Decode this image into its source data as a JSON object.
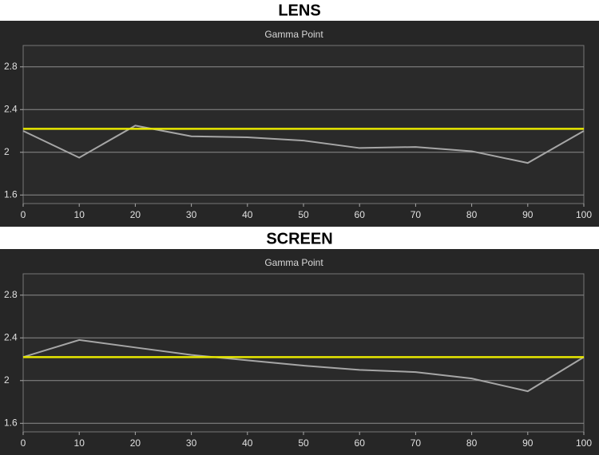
{
  "chart_data": [
    {
      "type": "line",
      "title": "LENS",
      "subtitle": "Gamma Point",
      "x": [
        0,
        10,
        20,
        30,
        40,
        50,
        60,
        70,
        80,
        90,
        100
      ],
      "series": [
        {
          "color": "#a6a6a6",
          "values": [
            2.2,
            1.95,
            2.25,
            2.15,
            2.14,
            2.11,
            2.04,
            2.05,
            2.01,
            1.9,
            2.2
          ]
        },
        {
          "color": "#e8e800",
          "values": [
            2.22,
            2.22,
            2.22,
            2.22,
            2.22,
            2.22,
            2.22,
            2.22,
            2.22,
            2.22,
            2.22
          ]
        }
      ],
      "xlim": [
        0,
        100
      ],
      "xticks": [
        0,
        10,
        20,
        30,
        40,
        50,
        60,
        70,
        80,
        90,
        100
      ],
      "ylim": [
        1.52,
        3.0
      ],
      "yticks": [
        1.6,
        2,
        2.4,
        2.8
      ],
      "grid": true
    },
    {
      "type": "line",
      "title": "SCREEN",
      "subtitle": "Gamma Point",
      "x": [
        0,
        10,
        20,
        30,
        40,
        50,
        60,
        70,
        80,
        90,
        100
      ],
      "series": [
        {
          "color": "#a6a6a6",
          "values": [
            2.22,
            2.38,
            2.31,
            2.24,
            2.19,
            2.14,
            2.1,
            2.08,
            2.02,
            1.9,
            2.22
          ]
        },
        {
          "color": "#e8e800",
          "values": [
            2.22,
            2.22,
            2.22,
            2.22,
            2.22,
            2.22,
            2.22,
            2.22,
            2.22,
            2.22,
            2.22
          ]
        }
      ],
      "xlim": [
        0,
        100
      ],
      "xticks": [
        0,
        10,
        20,
        30,
        40,
        50,
        60,
        70,
        80,
        90,
        100
      ],
      "ylim": [
        1.52,
        3.0
      ],
      "yticks": [
        1.6,
        2,
        2.4,
        2.8
      ],
      "grid": true
    }
  ]
}
